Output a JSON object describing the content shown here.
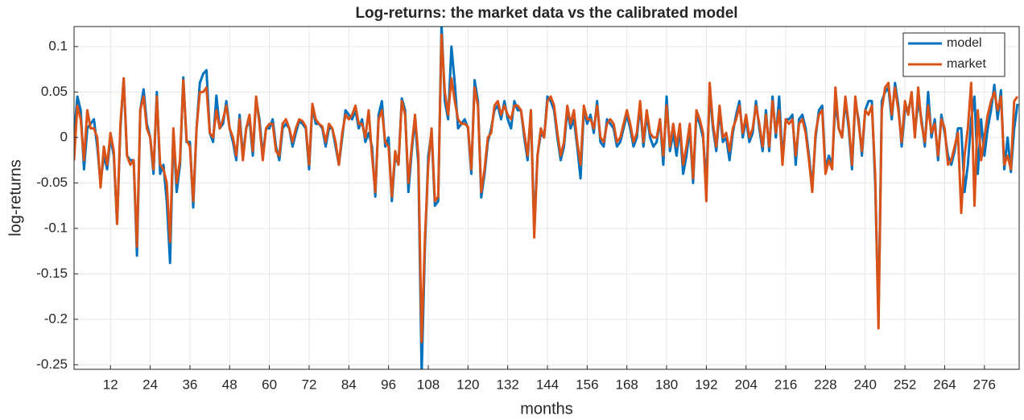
{
  "chart_data": {
    "type": "line",
    "title": "Log-returns: the market data vs the calibrated model",
    "x_label": "months",
    "y_label": "log-returns",
    "x": [
      1,
      2,
      3,
      4,
      5,
      6,
      7,
      8,
      9,
      10,
      11,
      12,
      13,
      14,
      15,
      16,
      17,
      18,
      19,
      20,
      21,
      22,
      23,
      24,
      25,
      26,
      27,
      28,
      29,
      30,
      31,
      32,
      33,
      34,
      35,
      36,
      37,
      38,
      39,
      40,
      41,
      42,
      43,
      44,
      45,
      46,
      47,
      48,
      49,
      50,
      51,
      52,
      53,
      54,
      55,
      56,
      57,
      58,
      59,
      60,
      61,
      62,
      63,
      64,
      65,
      66,
      67,
      68,
      69,
      70,
      71,
      72,
      73,
      74,
      75,
      76,
      77,
      78,
      79,
      80,
      81,
      82,
      83,
      84,
      85,
      86,
      87,
      88,
      89,
      90,
      91,
      92,
      93,
      94,
      95,
      96,
      97,
      98,
      99,
      100,
      101,
      102,
      103,
      104,
      105,
      106,
      107,
      108,
      109,
      110,
      111,
      112,
      113,
      114,
      115,
      116,
      117,
      118,
      119,
      120,
      121,
      122,
      123,
      124,
      125,
      126,
      127,
      128,
      129,
      130,
      131,
      132,
      133,
      134,
      135,
      136,
      137,
      138,
      139,
      140,
      141,
      142,
      143,
      144,
      145,
      146,
      147,
      148,
      149,
      150,
      151,
      152,
      153,
      154,
      155,
      156,
      157,
      158,
      159,
      160,
      161,
      162,
      163,
      164,
      165,
      166,
      167,
      168,
      169,
      170,
      171,
      172,
      173,
      174,
      175,
      176,
      177,
      178,
      179,
      180,
      181,
      182,
      183,
      184,
      185,
      186,
      187,
      188,
      189,
      190,
      191,
      192,
      193,
      194,
      195,
      196,
      197,
      198,
      199,
      200,
      201,
      202,
      203,
      204,
      205,
      206,
      207,
      208,
      209,
      210,
      211,
      212,
      213,
      214,
      215,
      216,
      217,
      218,
      219,
      220,
      221,
      222,
      223,
      224,
      225,
      226,
      227,
      228,
      229,
      230,
      231,
      232,
      233,
      234,
      235,
      236,
      237,
      238,
      239,
      240,
      241,
      242,
      243,
      244,
      245,
      246,
      247,
      248,
      249,
      250,
      251,
      252,
      253,
      254,
      255,
      256,
      257,
      258,
      259,
      260,
      261,
      262,
      263,
      264,
      265,
      266,
      267,
      268,
      269,
      270,
      271,
      272,
      273,
      274,
      275,
      276,
      277,
      278,
      279,
      280,
      281,
      282,
      283,
      284,
      285,
      286
    ],
    "series": [
      {
        "name": "model",
        "color": "#0072BD",
        "values": [
          0,
          0.045,
          0.03,
          -0.035,
          0.01,
          0.015,
          0.02,
          -0.01,
          -0.05,
          -0.02,
          -0.035,
          0,
          -0.02,
          -0.095,
          0.01,
          0.065,
          -0.02,
          -0.025,
          -0.025,
          -0.13,
          0.03,
          0.053,
          0.015,
          0,
          -0.04,
          0.05,
          -0.04,
          -0.03,
          -0.07,
          -0.138,
          0.005,
          -0.06,
          -0.03,
          0.066,
          -0.005,
          -0.005,
          -0.077,
          0.01,
          0.06,
          0.07,
          0.074,
          0.005,
          -0.005,
          0.046,
          0.01,
          0.015,
          0.04,
          0.01,
          -0.005,
          -0.025,
          0.025,
          -0.02,
          0.01,
          0.02,
          -0.02,
          0.042,
          0.02,
          -0.02,
          0.01,
          0.01,
          0.02,
          -0.01,
          -0.025,
          0.01,
          0.015,
          0.01,
          -0.01,
          0.005,
          0.018,
          0.015,
          0.01,
          -0.035,
          0.035,
          0.015,
          0.015,
          0.01,
          -0.01,
          0.01,
          0.01,
          -0.01,
          -0.03,
          0,
          0.03,
          0.025,
          0.02,
          0.03,
          0.01,
          0.02,
          -0.005,
          0.005,
          -0.01,
          -0.065,
          0.025,
          0.04,
          -0.01,
          0,
          -0.07,
          -0.02,
          -0.03,
          0.043,
          0.03,
          -0.06,
          -0.015,
          0.02,
          -0.03,
          -0.26,
          -0.12,
          -0.02,
          0.005,
          -0.075,
          -0.07,
          0.125,
          0.04,
          0.02,
          0.1,
          0.06,
          0.01,
          0.015,
          0.02,
          0.01,
          -0.04,
          0.063,
          0.04,
          -0.066,
          -0.04,
          -0.005,
          0.01,
          0.03,
          0.035,
          0.02,
          0.04,
          0.02,
          0.01,
          0.04,
          0.03,
          0.03,
          0,
          -0.025,
          0.03,
          -0.1,
          -0.02,
          0.005,
          0,
          0.045,
          0.04,
          0.03,
          0,
          -0.025,
          -0.01,
          0.03,
          0.01,
          0.02,
          -0.01,
          -0.045,
          0.03,
          0.015,
          0.025,
          0.005,
          0.04,
          -0.005,
          -0.01,
          0.02,
          0.015,
          0.01,
          -0.01,
          -0.005,
          0.01,
          0.025,
          0.01,
          -0.01,
          0,
          0.035,
          -0.01,
          0.025,
          0,
          -0.01,
          -0.005,
          0.02,
          -0.03,
          0.045,
          -0.015,
          0.005,
          -0.02,
          0.01,
          -0.04,
          -0.02,
          0.01,
          -0.05,
          0.025,
          0.015,
          0,
          -0.05,
          0.05,
          0.01,
          -0.015,
          0.03,
          -0.005,
          0,
          -0.025,
          0.005,
          0.025,
          0.04,
          0,
          0.02,
          -0.005,
          0.005,
          0.04,
          0.01,
          -0.015,
          0.03,
          -0.015,
          0.045,
          0,
          0.045,
          -0.025,
          0.02,
          0.02,
          0.025,
          -0.03,
          0.02,
          0.025,
          0.01,
          -0.02,
          -0.055,
          0,
          0.03,
          0.035,
          -0.035,
          -0.02,
          -0.03,
          0.04,
          0.01,
          0,
          0.04,
          0.01,
          -0.035,
          0.04,
          0.02,
          -0.02,
          0.03,
          0.04,
          0.04,
          -0.05,
          -0.2,
          0.04,
          0.05,
          0.055,
          0.02,
          0.06,
          0.035,
          -0.01,
          0.03,
          0.03,
          0.045,
          0.005,
          0.04,
          0.02,
          -0.01,
          0.05,
          0,
          0.02,
          -0.025,
          0.025,
          0.005,
          -0.02,
          -0.03,
          -0.015,
          0.01,
          0.01,
          -0.06,
          -0.03,
          0.02,
          0.045,
          -0.04,
          0.02,
          -0.02,
          0.01,
          0.03,
          0.058,
          0.02,
          0.052,
          -0.035,
          0,
          -0.038,
          0.01,
          0.037
        ]
      },
      {
        "name": "market",
        "color": "#D95319",
        "values": [
          -0.025,
          0.035,
          0.02,
          -0.025,
          0.03,
          0.01,
          0.01,
          0,
          -0.055,
          -0.01,
          -0.03,
          0.005,
          -0.015,
          -0.095,
          0.015,
          0.065,
          -0.02,
          -0.03,
          -0.025,
          -0.12,
          0.03,
          0.045,
          0.01,
          0,
          -0.035,
          0.045,
          -0.03,
          -0.035,
          -0.05,
          -0.115,
          0.01,
          -0.05,
          -0.025,
          0.063,
          -0.003,
          -0.01,
          -0.07,
          0.01,
          0.05,
          0.05,
          0.055,
          0.005,
          0,
          0.03,
          0.01,
          0.02,
          0.035,
          0.01,
          0,
          -0.02,
          0.02,
          -0.025,
          0.01,
          0.025,
          -0.015,
          0.045,
          0.015,
          -0.025,
          0.01,
          0.015,
          0.015,
          -0.015,
          -0.02,
          0.015,
          0.02,
          0.01,
          -0.005,
          0.01,
          0.02,
          0.018,
          0.012,
          -0.03,
          0.037,
          0.02,
          0.015,
          0.012,
          -0.005,
          0.015,
          0.01,
          -0.005,
          -0.03,
          0.005,
          0.025,
          0.02,
          0.025,
          0.035,
          0.015,
          0.015,
          0,
          0.03,
          -0.02,
          -0.06,
          0.02,
          0.03,
          -0.005,
          -0.01,
          -0.065,
          -0.015,
          -0.03,
          0.04,
          0.025,
          -0.05,
          -0.01,
          0.025,
          -0.02,
          -0.225,
          -0.11,
          -0.03,
          0.01,
          -0.07,
          -0.065,
          0.113,
          0.05,
          0.025,
          0.065,
          0.04,
          0.02,
          0.015,
          0.015,
          0.012,
          -0.035,
          0.055,
          0.035,
          -0.06,
          -0.035,
          0,
          0.005,
          0.035,
          0.04,
          0.025,
          0.035,
          0.025,
          0.02,
          0.035,
          0.035,
          0.03,
          0.005,
          -0.02,
          0.03,
          -0.11,
          -0.02,
          0.01,
          0,
          0.04,
          0.045,
          0.035,
          0.005,
          -0.02,
          -0.005,
          0.035,
          0.015,
          0.03,
          -0.005,
          -0.03,
          0.035,
          0.02,
          0.02,
          0.01,
          0.035,
          0,
          -0.005,
          0.015,
          0.02,
          0.015,
          -0.005,
          0,
          0.015,
          0.03,
          0.015,
          -0.005,
          0.005,
          0.04,
          -0.005,
          0.03,
          0.005,
          0,
          0,
          0.02,
          -0.02,
          0.035,
          -0.01,
          0.015,
          -0.01,
          0.015,
          -0.03,
          -0.01,
          0.015,
          -0.045,
          0.03,
          0.02,
          0.005,
          -0.07,
          0.06,
          0.015,
          -0.01,
          0.035,
          0,
          0.005,
          -0.015,
          0.01,
          0.02,
          0.035,
          0.005,
          0.025,
          0,
          0.01,
          0.035,
          0.015,
          -0.01,
          0.025,
          -0.01,
          0.04,
          0.005,
          0.03,
          -0.03,
          0.02,
          0.015,
          0.02,
          -0.02,
          0.015,
          0.02,
          0.005,
          -0.025,
          -0.06,
          0.005,
          0.025,
          0.03,
          -0.04,
          -0.025,
          -0.035,
          0.055,
          0.01,
          0,
          0.045,
          0.015,
          -0.03,
          0.045,
          0.015,
          -0.015,
          0.03,
          0.025,
          0.035,
          -0.04,
          -0.21,
          0.03,
          0.055,
          0.06,
          0.025,
          0.055,
          0.03,
          -0.005,
          0.04,
          0.025,
          0.05,
          0,
          0.055,
          0.015,
          -0.005,
          0.035,
          0.005,
          0.015,
          -0.02,
          0.02,
          0.01,
          -0.03,
          -0.025,
          -0.01,
          0.005,
          -0.083,
          -0.02,
          0.01,
          0.06,
          -0.075,
          0.03,
          -0.025,
          0,
          0.025,
          0.04,
          0.05,
          0.03,
          0.045,
          -0.03,
          -0.02,
          -0.035,
          0.04,
          0.045
        ]
      }
    ],
    "xlim": [
      1,
      286.5
    ],
    "ylim": [
      -0.255,
      0.122
    ],
    "xticks": [
      12,
      24,
      36,
      48,
      60,
      72,
      84,
      96,
      108,
      120,
      132,
      144,
      156,
      168,
      180,
      192,
      204,
      216,
      228,
      240,
      252,
      264,
      276
    ],
    "yticks": [
      0.1,
      0.05,
      0,
      -0.05,
      -0.1,
      -0.15,
      -0.2,
      -0.25
    ],
    "grid": true,
    "legend": "upper right"
  }
}
